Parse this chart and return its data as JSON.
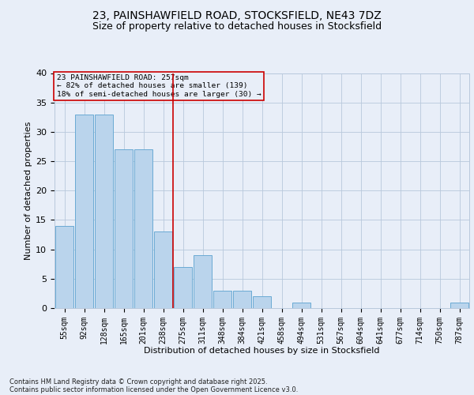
{
  "title1": "23, PAINSHAWFIELD ROAD, STOCKSFIELD, NE43 7DZ",
  "title2": "Size of property relative to detached houses in Stocksfield",
  "xlabel": "Distribution of detached houses by size in Stocksfield",
  "ylabel": "Number of detached properties",
  "categories": [
    "55sqm",
    "92sqm",
    "128sqm",
    "165sqm",
    "201sqm",
    "238sqm",
    "275sqm",
    "311sqm",
    "348sqm",
    "384sqm",
    "421sqm",
    "458sqm",
    "494sqm",
    "531sqm",
    "567sqm",
    "604sqm",
    "641sqm",
    "677sqm",
    "714sqm",
    "750sqm",
    "787sqm"
  ],
  "values": [
    14,
    33,
    33,
    27,
    27,
    13,
    7,
    9,
    3,
    3,
    2,
    0,
    1,
    0,
    0,
    0,
    0,
    0,
    0,
    0,
    1
  ],
  "bar_color": "#bad4ec",
  "bar_edge_color": "#6aaad4",
  "ref_line_x": 5.5,
  "annotation_line1": "23 PAINSHAWFIELD ROAD: 257sqm",
  "annotation_line2": "← 82% of detached houses are smaller (139)",
  "annotation_line3": "18% of semi-detached houses are larger (30) →",
  "annotation_box_color": "#cc0000",
  "footer1": "Contains HM Land Registry data © Crown copyright and database right 2025.",
  "footer2": "Contains public sector information licensed under the Open Government Licence v3.0.",
  "bg_color": "#e8eef8",
  "plot_bg_color": "#e8eef8",
  "ylim": [
    0,
    40
  ],
  "yticks": [
    0,
    5,
    10,
    15,
    20,
    25,
    30,
    35,
    40
  ],
  "title1_fontsize": 10,
  "title2_fontsize": 9,
  "xlabel_fontsize": 8,
  "ylabel_fontsize": 8
}
